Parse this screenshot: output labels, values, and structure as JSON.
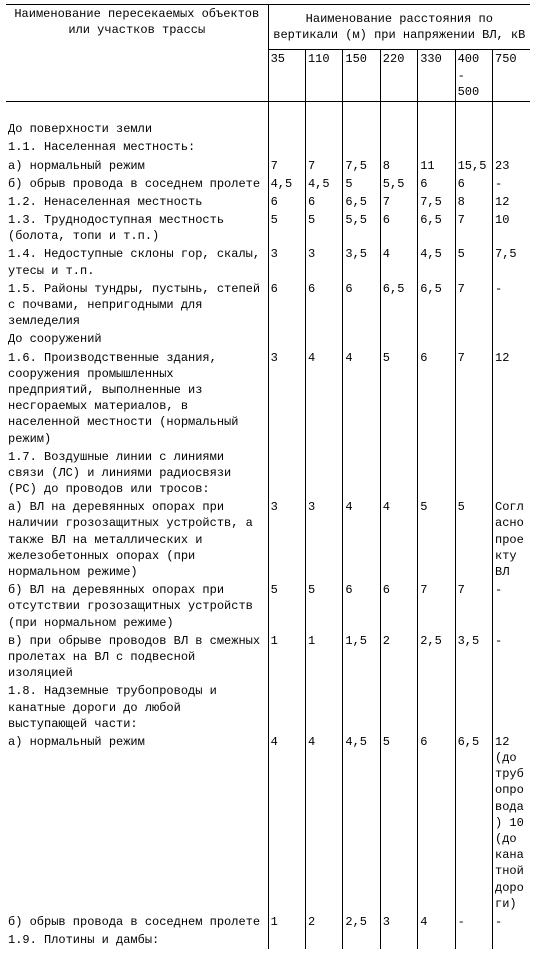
{
  "header_left": "Наименование пересекаемых объектов или участков трассы",
  "header_right": "Наименование расстояния по вертикали (м) при напряжении ВЛ, кВ",
  "voltages": [
    "35",
    "110",
    "150",
    "220",
    "330",
    "400 - 500",
    "750"
  ],
  "rows": [
    {
      "label": "   До поверхности земли",
      "v": [
        "",
        "",
        "",
        "",
        "",
        "",
        ""
      ]
    },
    {
      "label": "1.1. Населенная местность:",
      "v": [
        "",
        "",
        "",
        "",
        "",
        "",
        ""
      ]
    },
    {
      "label": "  а) нормальный режим",
      "v": [
        "7",
        "7",
        "7,5",
        "8",
        "11",
        "15,5",
        "23"
      ]
    },
    {
      "label": "  б) обрыв провода в соседнем пролете",
      "v": [
        "4,5",
        "4,5",
        "5",
        "5,5",
        "6",
        "6",
        "-"
      ]
    },
    {
      "label": "1.2. Ненаселенная местность",
      "v": [
        "6",
        "6",
        "6,5",
        "7",
        "7,5",
        "8",
        "12"
      ]
    },
    {
      "label": "1.3. Труднодоступная местность (болота, топи и т.п.)",
      "v": [
        "5",
        "5",
        "5,5",
        "6",
        "6,5",
        "7",
        "10"
      ]
    },
    {
      "label": "1.4. Недоступные склоны гор, скалы, утесы и т.п.",
      "v": [
        "3",
        "3",
        "3,5",
        "4",
        "4,5",
        "5",
        "7,5"
      ]
    },
    {
      "label": "1.5. Районы тундры, пустынь, степей с почвами, непригодными для земледелия",
      "v": [
        "6",
        "6",
        "6",
        "6,5",
        "6,5",
        "7",
        "-"
      ]
    },
    {
      "label": "   До сооружений",
      "v": [
        "",
        "",
        "",
        "",
        "",
        "",
        ""
      ]
    },
    {
      "label": "1.6. Производственные здания, сооружения промышленных предприятий, выполненные из несгораемых материалов, в населенной местности (нормальный режим)",
      "v": [
        "3",
        "4",
        "4",
        "5",
        "6",
        "7",
        "12"
      ]
    },
    {
      "label": "1.7. Воздушные линии с линиями связи (ЛС) и линиями радиосвязи (РС) до проводов или тросов:",
      "v": [
        "",
        "",
        "",
        "",
        "",
        "",
        ""
      ]
    },
    {
      "label": "  а) ВЛ на деревянных опорах при наличии грозозащитных устройств, а также ВЛ на металлических и железобетонных опорах (при нормальном режиме)",
      "v": [
        "3",
        "3",
        "4",
        "4",
        "5",
        "5",
        "Согласно проекту ВЛ"
      ]
    },
    {
      "label": "  б) ВЛ на деревянных опорах при отсутствии грозозащитных устройств (при нормальном режиме)",
      "v": [
        "5",
        "5",
        "6",
        "6",
        "7",
        "7",
        "-"
      ]
    },
    {
      "label": "  в) при обрыве проводов ВЛ в смежных пролетах на ВЛ с подвесной изоляцией",
      "v": [
        "1",
        "1",
        "1,5",
        "2",
        "2,5",
        "3,5",
        "-"
      ]
    },
    {
      "label": "1.8. Надземные трубопроводы и канатные дороги до любой выступающей части:",
      "v": [
        "",
        "",
        "",
        "",
        "",
        "",
        ""
      ]
    },
    {
      "label": "  а) нормальный режим",
      "v": [
        "4",
        "4",
        "4,5",
        "5",
        "6",
        "6,5",
        "12 (до трубопровода) 10 (до канатной дороги)"
      ]
    },
    {
      "label": "  б) обрыв провода в соседнем пролете",
      "v": [
        "1",
        "2",
        "2,5",
        "3",
        "4",
        "-",
        "-"
      ]
    },
    {
      "label": "1.9. Плотины и дамбы:",
      "v": [
        "",
        "",
        "",
        "",
        "",
        "",
        ""
      ]
    }
  ]
}
